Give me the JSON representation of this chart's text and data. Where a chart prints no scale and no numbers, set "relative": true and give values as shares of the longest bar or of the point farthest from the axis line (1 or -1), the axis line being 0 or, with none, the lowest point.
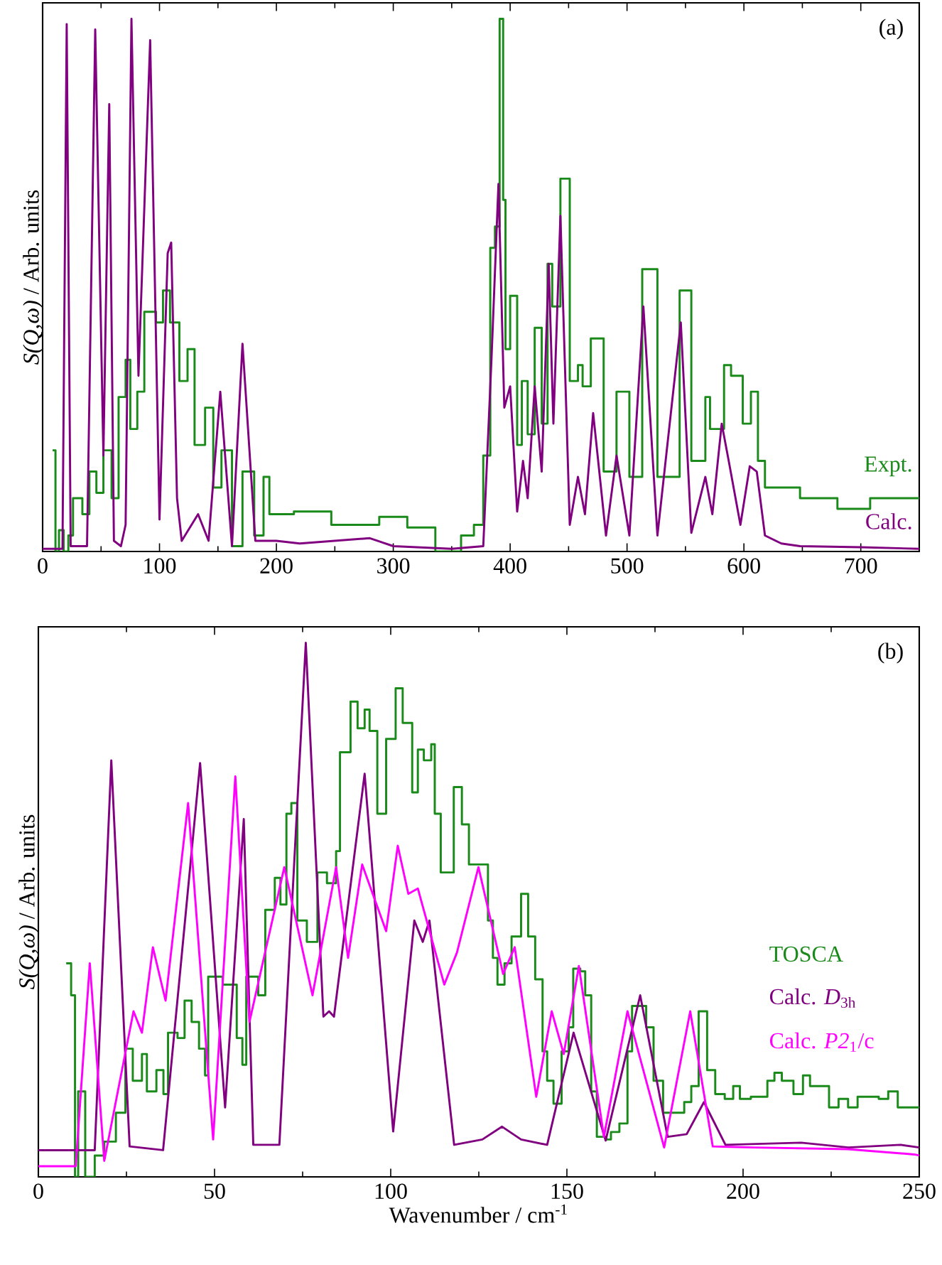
{
  "chart_data": [
    {
      "type": "line",
      "relative": true,
      "ylabel": "*S(Q,ω)* / Arb. units",
      "xlim": [
        0,
        750
      ],
      "xticks": [
        0,
        100,
        200,
        300,
        400,
        500,
        600,
        700
      ],
      "annotations": [
        "(a)"
      ],
      "series": [
        {
          "name": "Expt.",
          "type": "step",
          "color": "#1a8a1a",
          "x": [
            8.5,
            11,
            14,
            18,
            22,
            26,
            34,
            40,
            46,
            52,
            59,
            65,
            71,
            75,
            81,
            87,
            97,
            103,
            109,
            117,
            124,
            130,
            139,
            146,
            153,
            162,
            171,
            181,
            189,
            194,
            215,
            247,
            288,
            312,
            336,
            358,
            369,
            377,
            383,
            387,
            391,
            394,
            396,
            400,
            406,
            410,
            415,
            421,
            427,
            432,
            436,
            443,
            451,
            458,
            462,
            469,
            480,
            491,
            502,
            513,
            526,
            545,
            555,
            567,
            571,
            583,
            589,
            599,
            606,
            612,
            618,
            648,
            680,
            708,
            750
          ],
          "values": [
            0.19,
            0,
            0.04,
            0,
            0.03,
            0.1,
            0.07,
            0.15,
            0.11,
            0.19,
            0.1,
            0.29,
            0.36,
            0.23,
            0.3,
            0.45,
            0.43,
            0.49,
            0.43,
            0.32,
            0.38,
            0.2,
            0.27,
            0.12,
            0.19,
            0.01,
            0.15,
            0.03,
            0.14,
            0.07,
            0.075,
            0.05,
            0.065,
            0.045,
            0,
            0.03,
            0.05,
            0.18,
            0.57,
            0.61,
            1.0,
            0.66,
            0.38,
            0.48,
            0.2,
            0.32,
            0.22,
            0.42,
            0.24,
            0.54,
            0.46,
            0.7,
            0.32,
            0.35,
            0.31,
            0.4,
            0.15,
            0.3,
            0.14,
            0.53,
            0.14,
            0.49,
            0.17,
            0.29,
            0.23,
            0.35,
            0.33,
            0.24,
            0.3,
            0.17,
            0.12,
            0.1,
            0.08,
            0.1,
            0.1
          ]
        },
        {
          "name": "Calc.",
          "color": "#800080",
          "x": [
            0,
            17,
            20.6,
            24,
            38,
            45,
            52,
            57,
            61,
            67,
            71,
            76,
            82,
            92,
            100,
            107,
            110,
            115,
            119,
            133,
            142,
            152,
            162,
            171,
            182,
            200,
            220,
            250,
            280,
            300,
            350,
            377,
            384,
            390,
            395,
            400,
            406,
            411,
            415,
            421,
            427,
            433,
            437,
            443,
            451,
            458,
            464,
            471,
            482,
            491,
            502,
            514,
            526,
            546,
            555,
            567,
            573,
            581,
            587,
            597,
            605,
            611,
            618,
            632,
            648,
            700,
            750
          ],
          "values": [
            0.005,
            0.005,
            0.99,
            0.01,
            0.01,
            0.98,
            0.18,
            0.84,
            0.02,
            0.01,
            0.05,
            1.0,
            0.33,
            0.96,
            0.06,
            0.56,
            0.58,
            0.1,
            0.02,
            0.07,
            0.02,
            0.3,
            0.01,
            0.39,
            0.02,
            0.02,
            0.015,
            0.02,
            0.025,
            0.01,
            0.005,
            0.01,
            0.36,
            0.69,
            0.27,
            0.31,
            0.075,
            0.17,
            0.1,
            0.31,
            0.15,
            0.54,
            0.24,
            0.63,
            0.05,
            0.14,
            0.07,
            0.26,
            0.03,
            0.18,
            0.03,
            0.46,
            0.03,
            0.43,
            0.035,
            0.14,
            0.07,
            0.24,
            0.17,
            0.05,
            0.16,
            0.15,
            0.03,
            0.015,
            0.01,
            0.008,
            0.005
          ]
        }
      ]
    },
    {
      "type": "line",
      "relative": true,
      "ylabel": "*S(Q,ω)* / Arb. units",
      "xlabel": "Wavenumber / cm$^{-1}$",
      "xlim": [
        0,
        250
      ],
      "xticks": [
        0,
        50,
        100,
        150,
        200,
        250
      ],
      "annotations": [
        "(b)"
      ],
      "series": [
        {
          "name": "TOSCA",
          "type": "step",
          "color": "#1a8a1a",
          "x": [
            7.9,
            9.3,
            10.4,
            11.3,
            13.3,
            16,
            18.7,
            22,
            24.7,
            26.8,
            29.4,
            30.8,
            33.5,
            35.5,
            36.8,
            39.5,
            41.5,
            43.5,
            45.6,
            47.3,
            48.2,
            52.3,
            56.3,
            57.9,
            59,
            62.4,
            64.4,
            67.1,
            68.7,
            70.4,
            71.8,
            73.5,
            76.2,
            79.2,
            81.9,
            84.5,
            85.6,
            88.6,
            90.6,
            92.6,
            94,
            96.2,
            98.7,
            101.4,
            103.4,
            106.1,
            107.7,
            109.4,
            111.5,
            112.5,
            114.2,
            117.9,
            120.2,
            122.2,
            127.6,
            129,
            130.3,
            132.3,
            134.3,
            137,
            139,
            141,
            143.1,
            144.4,
            146.2,
            148.5,
            150.5,
            151.8,
            153.8,
            155.2,
            156.9,
            158.5,
            161.2,
            162.5,
            164.9,
            167.2,
            168.5,
            172.5,
            174.6,
            177.3,
            180.6,
            183.3,
            185.3,
            187.4,
            189.8,
            192.1,
            194.8,
            197.2,
            199.1,
            202.2,
            206.9,
            208.9,
            211,
            214.3,
            217,
            219,
            224.4,
            227.1,
            229.8,
            232.5,
            238.5,
            241.2,
            243.9,
            250
          ],
          "values": [
            0.4,
            0.34,
            0,
            0.16,
            0,
            0.04,
            0.066,
            0.12,
            0.24,
            0.18,
            0.23,
            0.16,
            0.2,
            0.155,
            0.27,
            0.26,
            0.33,
            0.29,
            0.24,
            0.19,
            0.375,
            0.36,
            0.26,
            0.21,
            0.375,
            0.34,
            0.5,
            0.56,
            0.51,
            0.68,
            0.7,
            0.48,
            0.44,
            0.57,
            0.55,
            0.61,
            0.795,
            0.89,
            0.84,
            0.875,
            0.835,
            0.68,
            0.82,
            0.915,
            0.85,
            0.72,
            0.8,
            0.78,
            0.81,
            0.68,
            0.57,
            0.73,
            0.66,
            0.585,
            0.48,
            0.41,
            0.36,
            0.4,
            0.45,
            0.53,
            0.45,
            0.37,
            0.235,
            0.18,
            0.137,
            0.235,
            0.28,
            0.39,
            0.385,
            0.34,
            0.16,
            0.075,
            0.07,
            0.084,
            0.1,
            0.235,
            0.32,
            0.28,
            0.18,
            0.12,
            0.12,
            0.14,
            0.17,
            0.31,
            0.2,
            0.155,
            0.146,
            0.17,
            0.146,
            0.15,
            0.18,
            0.195,
            0.18,
            0.155,
            0.19,
            0.17,
            0.13,
            0.146,
            0.13,
            0.15,
            0.146,
            0.16,
            0.13,
            0.13
          ]
        },
        {
          "name": "Calc. *D*$_{3h}$",
          "color": "#800080",
          "x": [
            0,
            16,
            20.7,
            25.9,
            35.4,
            45.9,
            53,
            58.3,
            61,
            68.4,
            75.9,
            80.9,
            82.5,
            83.9,
            92.6,
            100.7,
            106.7,
            109.1,
            111,
            118,
            126,
            131.6,
            137,
            144.4,
            151.9,
            161,
            170.8,
            178.6,
            184,
            188.9,
            195,
            216.5,
            229.9,
            244.7,
            250
          ],
          "values": [
            0.05,
            0.05,
            0.78,
            0.057,
            0.05,
            0.775,
            0.13,
            0.67,
            0.06,
            0.06,
            1.0,
            0.3,
            0.31,
            0.3,
            0.755,
            0.085,
            0.48,
            0.44,
            0.48,
            0.06,
            0.07,
            0.094,
            0.07,
            0.06,
            0.27,
            0.068,
            0.34,
            0.075,
            0.08,
            0.14,
            0.06,
            0.064,
            0.055,
            0.06,
            0.055
          ]
        },
        {
          "name": "Calc. *P2*$_{1}$/c",
          "color": "#ff00ff",
          "x": [
            0,
            10.6,
            14.6,
            18.7,
            27,
            29.4,
            32.5,
            36.1,
            42.5,
            49.6,
            55.9,
            59.9,
            69.8,
            77.8,
            84.5,
            87.9,
            91.9,
            98.7,
            102,
            105,
            107.7,
            115.2,
            118.8,
            124.9,
            131.9,
            135.2,
            141.3,
            145.7,
            149.1,
            153.4,
            160.5,
            167.2,
            177.6,
            185,
            191.4,
            202.8,
            229.7,
            248.6,
            250
          ],
          "values": [
            0.02,
            0.02,
            0.4,
            0.03,
            0.31,
            0.27,
            0.43,
            0.33,
            0.7,
            0.07,
            0.75,
            0.29,
            0.58,
            0.34,
            0.58,
            0.41,
            0.585,
            0.46,
            0.62,
            0.53,
            0.54,
            0.36,
            0.42,
            0.58,
            0.38,
            0.43,
            0.15,
            0.31,
            0.23,
            0.395,
            0.075,
            0.31,
            0.055,
            0.31,
            0.057,
            0.055,
            0.052,
            0.042,
            0.04
          ]
        }
      ]
    }
  ]
}
